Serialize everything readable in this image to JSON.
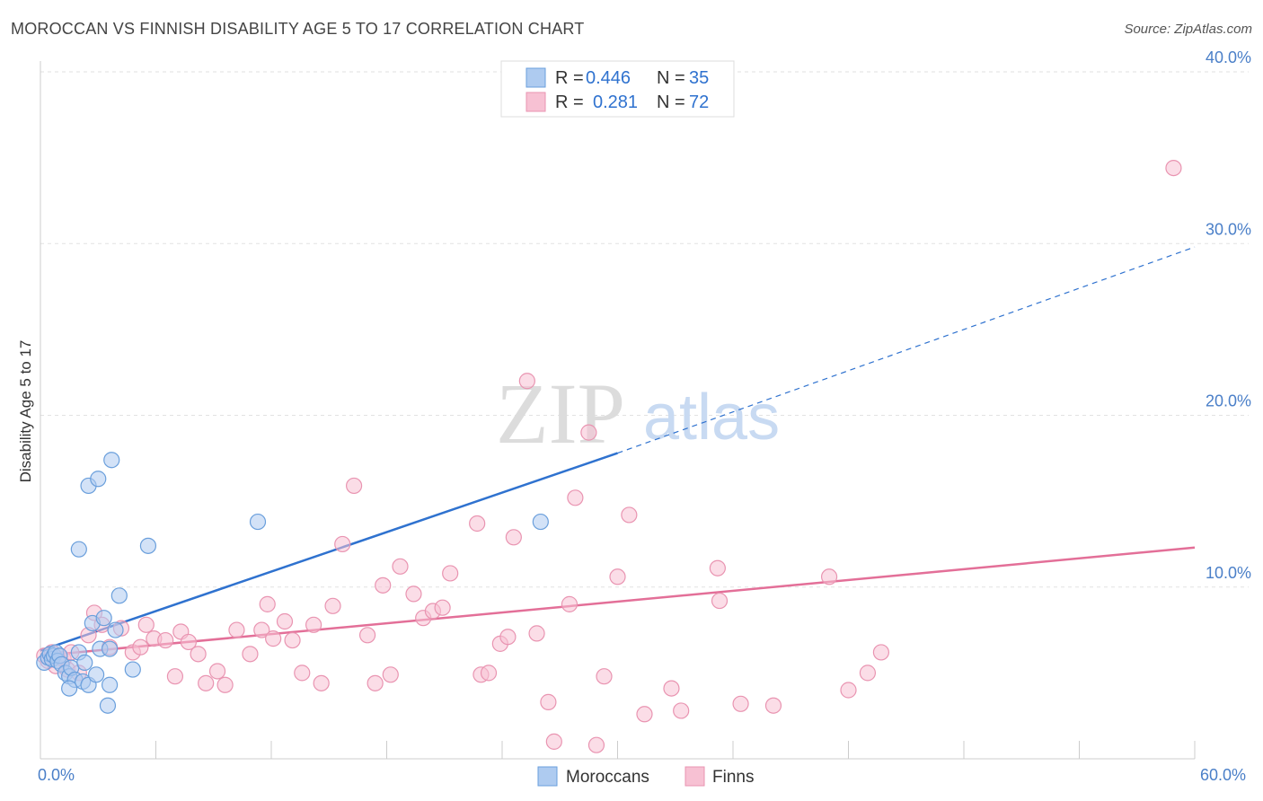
{
  "chart_data": {
    "type": "scatter",
    "title": "MOROCCAN VS FINNISH DISABILITY AGE 5 TO 17 CORRELATION CHART",
    "source": "Source: ZipAtlas.com",
    "ylabel": "Disability Age 5 to 17",
    "xlim": [
      0,
      60
    ],
    "ylim": [
      0,
      40
    ],
    "x_tick_labels": [
      "0.0%",
      "60.0%"
    ],
    "y_ticks": [
      {
        "value": 10,
        "label": "10.0%"
      },
      {
        "value": 20,
        "label": "20.0%"
      },
      {
        "value": 30,
        "label": "30.0%"
      },
      {
        "value": 40,
        "label": "40.0%"
      }
    ],
    "watermark": {
      "zip": "ZIP",
      "atlas": "atlas"
    },
    "legend": {
      "r_label": "R =",
      "n_label": "N =",
      "entries": [
        {
          "series": "Moroccans",
          "r": "0.446",
          "n": "35"
        },
        {
          "series": "Finns",
          "r": "0.281",
          "n": "72"
        }
      ]
    },
    "series": [
      {
        "name": "Moroccans",
        "fill": "#aecbf0",
        "stroke": "#6a9fdc",
        "line_color": "#2f72cf",
        "trend": {
          "solid": [
            [
              0,
              6.3
            ],
            [
              30,
              17.8
            ]
          ],
          "dashed": [
            [
              30,
              17.8
            ],
            [
              60,
              29.8
            ]
          ]
        },
        "points": [
          [
            0.2,
            5.6
          ],
          [
            0.4,
            5.9
          ],
          [
            0.5,
            6.1
          ],
          [
            0.6,
            5.8
          ],
          [
            0.7,
            6.0
          ],
          [
            0.8,
            6.2
          ],
          [
            0.9,
            5.7
          ],
          [
            1.0,
            6.0
          ],
          [
            1.1,
            5.5
          ],
          [
            1.3,
            5.0
          ],
          [
            1.5,
            4.8
          ],
          [
            1.6,
            5.3
          ],
          [
            1.8,
            4.6
          ],
          [
            1.5,
            4.1
          ],
          [
            2.0,
            6.2
          ],
          [
            2.2,
            4.5
          ],
          [
            2.3,
            5.6
          ],
          [
            2.5,
            4.3
          ],
          [
            2.7,
            7.9
          ],
          [
            2.9,
            4.9
          ],
          [
            3.1,
            6.4
          ],
          [
            3.3,
            8.2
          ],
          [
            3.5,
            3.1
          ],
          [
            3.6,
            6.4
          ],
          [
            3.6,
            4.3
          ],
          [
            3.9,
            7.5
          ],
          [
            4.1,
            9.5
          ],
          [
            4.8,
            5.2
          ],
          [
            5.6,
            12.4
          ],
          [
            2.0,
            12.2
          ],
          [
            2.5,
            15.9
          ],
          [
            3.0,
            16.3
          ],
          [
            3.7,
            17.4
          ],
          [
            11.3,
            13.8
          ],
          [
            26.0,
            13.8
          ]
        ]
      },
      {
        "name": "Finns",
        "fill": "#f7c1d3",
        "stroke": "#e994b1",
        "line_color": "#e36f98",
        "trend": {
          "solid": [
            [
              0,
              6.0
            ],
            [
              60,
              12.3
            ]
          ]
        },
        "points": [
          [
            0.2,
            6.0
          ],
          [
            0.4,
            5.7
          ],
          [
            0.6,
            6.2
          ],
          [
            0.8,
            5.4
          ],
          [
            1.0,
            6.0
          ],
          [
            1.2,
            5.8
          ],
          [
            1.4,
            5.2
          ],
          [
            1.6,
            6.2
          ],
          [
            2.0,
            5.0
          ],
          [
            2.5,
            7.2
          ],
          [
            2.8,
            8.5
          ],
          [
            3.2,
            7.8
          ],
          [
            3.6,
            6.5
          ],
          [
            4.2,
            7.6
          ],
          [
            4.8,
            6.2
          ],
          [
            5.2,
            6.5
          ],
          [
            5.5,
            7.8
          ],
          [
            5.9,
            7.0
          ],
          [
            6.5,
            6.9
          ],
          [
            7.0,
            4.8
          ],
          [
            7.3,
            7.4
          ],
          [
            7.7,
            6.8
          ],
          [
            8.2,
            6.1
          ],
          [
            8.6,
            4.4
          ],
          [
            9.2,
            5.1
          ],
          [
            9.6,
            4.3
          ],
          [
            10.2,
            7.5
          ],
          [
            10.9,
            6.1
          ],
          [
            11.5,
            7.5
          ],
          [
            11.8,
            9.0
          ],
          [
            12.1,
            7.0
          ],
          [
            12.7,
            8.0
          ],
          [
            13.1,
            6.9
          ],
          [
            13.6,
            5.0
          ],
          [
            14.2,
            7.8
          ],
          [
            14.6,
            4.4
          ],
          [
            15.2,
            8.9
          ],
          [
            15.7,
            12.5
          ],
          [
            16.3,
            15.9
          ],
          [
            17.0,
            7.2
          ],
          [
            17.4,
            4.4
          ],
          [
            17.8,
            10.1
          ],
          [
            18.2,
            4.9
          ],
          [
            18.7,
            11.2
          ],
          [
            19.4,
            9.6
          ],
          [
            19.9,
            8.2
          ],
          [
            20.4,
            8.6
          ],
          [
            20.9,
            8.8
          ],
          [
            21.3,
            10.8
          ],
          [
            22.7,
            13.7
          ],
          [
            22.9,
            4.9
          ],
          [
            23.3,
            5.0
          ],
          [
            23.9,
            6.7
          ],
          [
            24.3,
            7.1
          ],
          [
            24.6,
            12.9
          ],
          [
            25.3,
            22.0
          ],
          [
            25.8,
            7.3
          ],
          [
            26.4,
            3.3
          ],
          [
            26.7,
            1.0
          ],
          [
            27.5,
            9.0
          ],
          [
            27.8,
            15.2
          ],
          [
            28.5,
            19.0
          ],
          [
            28.9,
            0.8
          ],
          [
            29.3,
            4.8
          ],
          [
            30.0,
            10.6
          ],
          [
            30.6,
            14.2
          ],
          [
            31.4,
            2.6
          ],
          [
            32.8,
            4.1
          ],
          [
            33.3,
            2.8
          ],
          [
            35.2,
            11.1
          ],
          [
            35.3,
            9.2
          ],
          [
            36.4,
            3.2
          ]
        ],
        "extra_points": [
          [
            38.1,
            3.1
          ],
          [
            41.0,
            10.6
          ],
          [
            42.0,
            4.0
          ],
          [
            43.0,
            5.0
          ],
          [
            43.7,
            6.2
          ],
          [
            58.9,
            34.4
          ]
        ]
      }
    ]
  }
}
